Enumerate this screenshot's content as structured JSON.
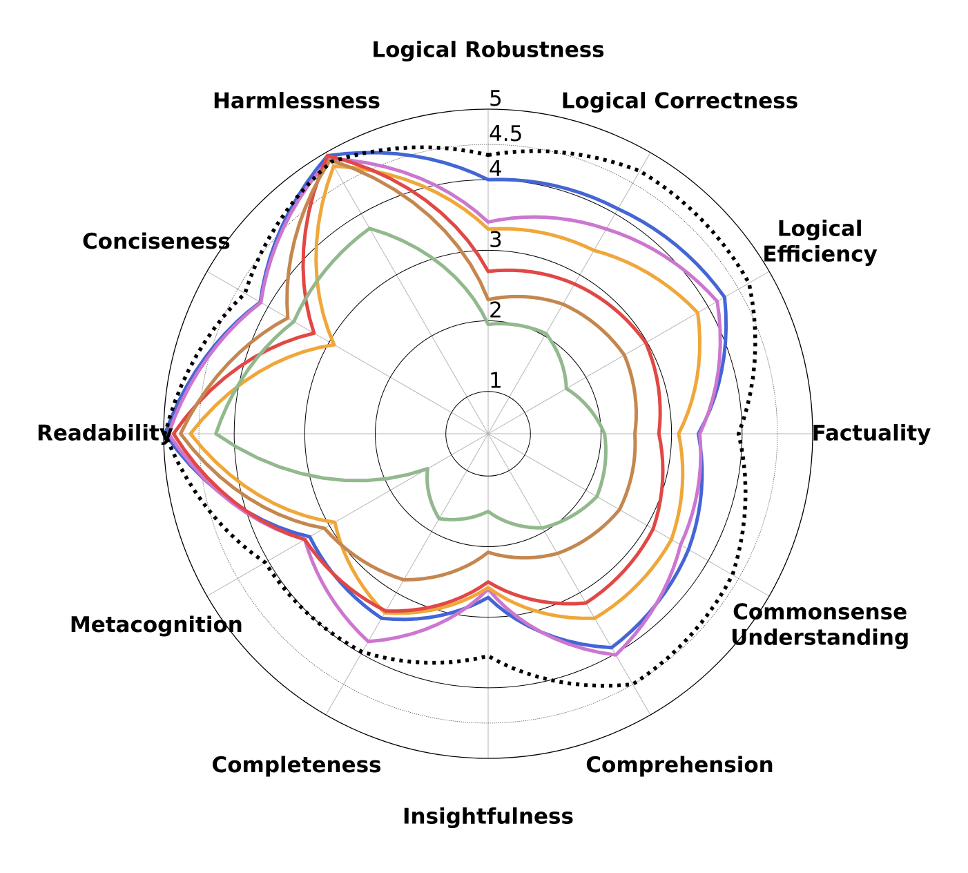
{
  "chart_data": {
    "type": "radar",
    "axes": [
      "Logical Robustness",
      "Logical Correctness",
      "Logical Efficiency",
      "Factuality",
      "Commonsense Understanding",
      "Comprehension",
      "Insightfulness",
      "Completeness",
      "Metacognition",
      "Readability",
      "Conciseness",
      "Harmlessness"
    ],
    "axis_label_lines": [
      [
        "Logical Robustness"
      ],
      [
        "Logical Correctness"
      ],
      [
        "Logical",
        "Efficiency"
      ],
      [
        "Factuality"
      ],
      [
        "Commonsense",
        "Understanding"
      ],
      [
        "Comprehension"
      ],
      [
        "Insightfulness"
      ],
      [
        "Completeness"
      ],
      [
        "Metacognition"
      ],
      [
        "Readability"
      ],
      [
        "Conciseness"
      ],
      [
        "Harmlessness"
      ]
    ],
    "r_ticks": [
      1,
      2,
      3,
      4,
      4.5,
      5
    ],
    "r_tick_labels": [
      "1",
      "2",
      "3",
      "4",
      "4.5",
      "5"
    ],
    "rlim": [
      0.4,
      5
    ],
    "grid": true,
    "series": [
      {
        "color": "#4465d6",
        "style": "solid",
        "values": [
          4.0,
          4.08,
          4.27,
          3.38,
          3.68,
          3.9,
          2.72,
          3.42,
          3.32,
          4.98,
          4.13,
          4.95
        ]
      },
      {
        "color": "#cc77cf",
        "style": "solid",
        "values": [
          3.4,
          3.75,
          4.15,
          3.4,
          3.55,
          4.02,
          2.6,
          3.8,
          3.4,
          4.93,
          4.12,
          4.9
        ]
      },
      {
        "color": "#f0a73a",
        "style": "solid",
        "values": [
          3.3,
          3.4,
          3.83,
          3.1,
          3.4,
          3.42,
          2.58,
          3.33,
          2.91,
          4.62,
          2.92,
          4.78
        ]
      },
      {
        "color": "#e14845",
        "style": "solid",
        "values": [
          2.7,
          2.85,
          2.98,
          2.82,
          3.1,
          3.17,
          2.5,
          3.3,
          3.4,
          4.86,
          3.25,
          4.95
        ]
      },
      {
        "color": "#c4874f",
        "style": "solid",
        "values": [
          2.3,
          2.52,
          2.63,
          2.48,
          2.55,
          2.36,
          2.08,
          2.79,
          3.08,
          4.76,
          3.68,
          4.88
        ]
      },
      {
        "color": "#92b98d",
        "style": "solid",
        "values": [
          1.95,
          2.04,
          1.68,
          2.05,
          2.18,
          1.94,
          1.5,
          1.79,
          1.39,
          4.26,
          3.58,
          3.76
        ]
      },
      {
        "color": "#000000",
        "style": "dotted",
        "values": [
          4.35,
          4.7,
          4.67,
          3.95,
          4.4,
          4.5,
          3.55,
          3.97,
          4.05,
          4.98,
          4.38,
          4.85
        ]
      }
    ]
  }
}
